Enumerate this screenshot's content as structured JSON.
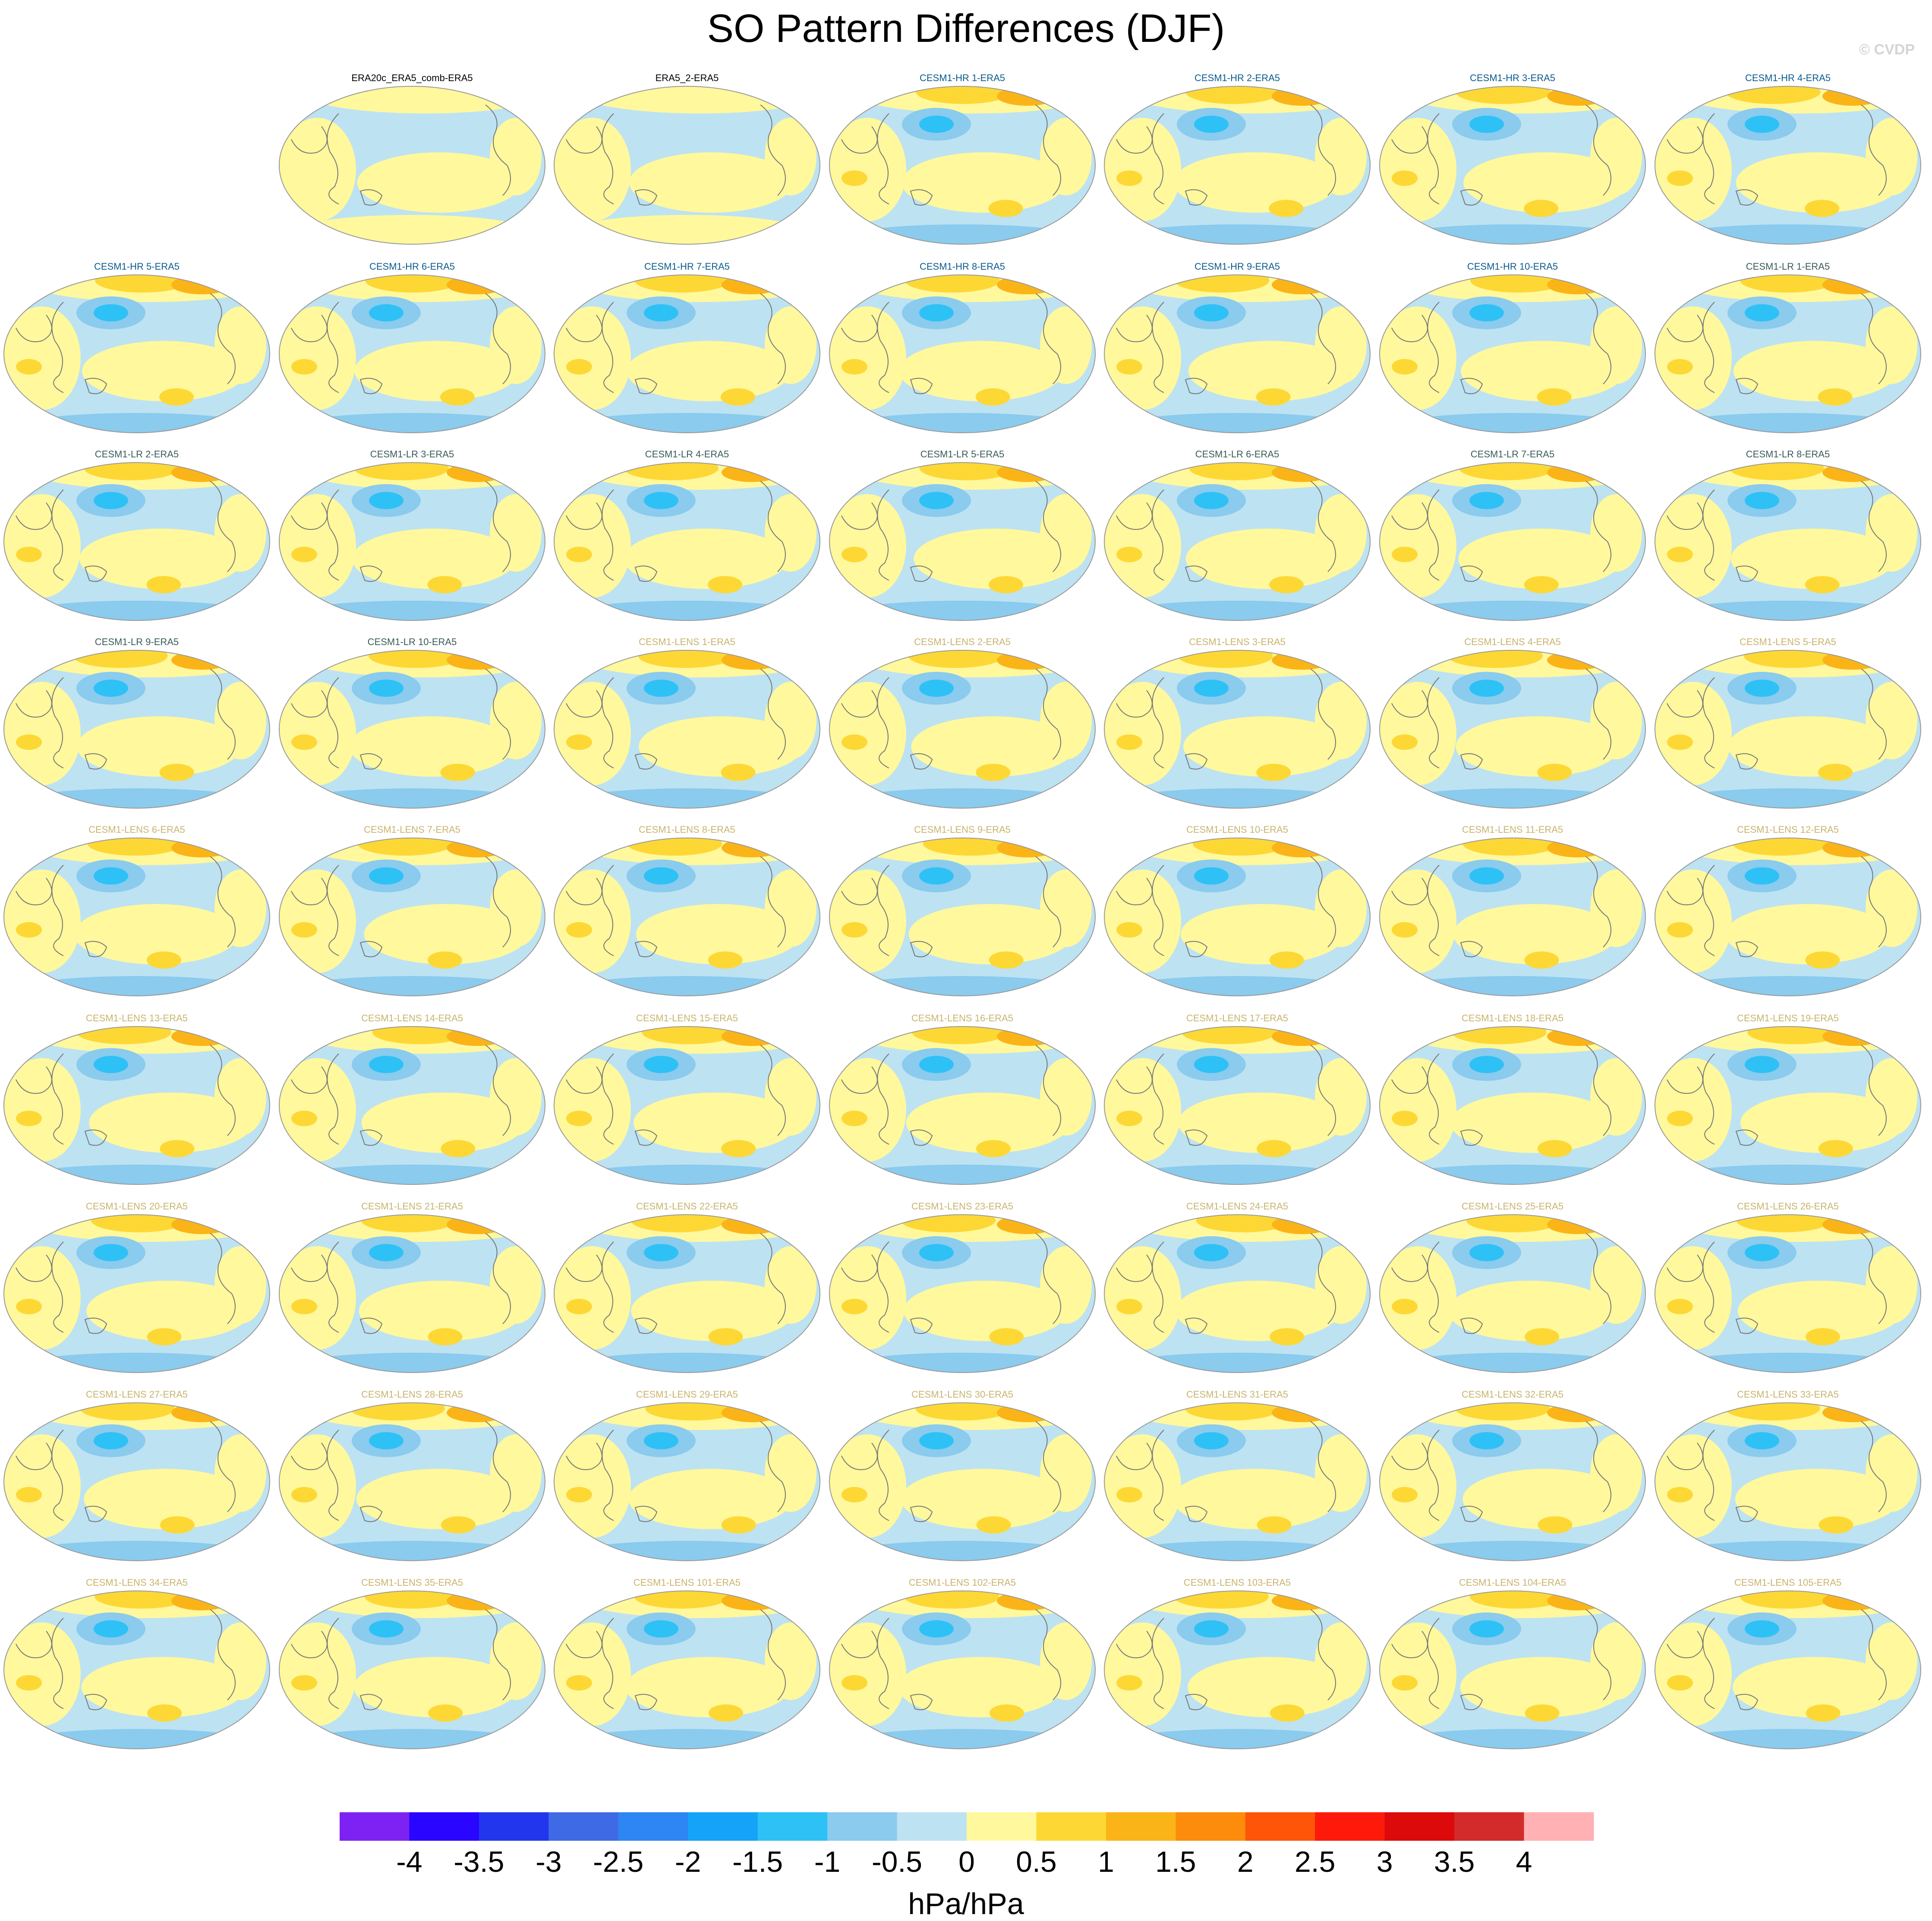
{
  "title": "SO Pattern Differences (DJF)",
  "credit": "© CVDP",
  "colorbar": {
    "units": "hPa/hPa",
    "labels": [
      "-4",
      "-3.5",
      "-3",
      "-2.5",
      "-2",
      "-1.5",
      "-1",
      "-0.5",
      "0",
      "0.5",
      "1",
      "1.5",
      "2",
      "2.5",
      "3",
      "3.5",
      "4"
    ],
    "colors": [
      "#7d22f2",
      "#2a05ff",
      "#2236ee",
      "#3f6ae6",
      "#2d86f3",
      "#14a3f7",
      "#2ec1f6",
      "#8acbee",
      "#bde2f2",
      "#fff89d",
      "#fdd835",
      "#fbb417",
      "#fd8c0c",
      "#fe5509",
      "#fd1a0b",
      "#dc0a0a",
      "#d32b2b",
      "#ffb1b3"
    ]
  },
  "panel_title_colors": {
    "obs": "#000000",
    "hr": "#0b5b8c",
    "lr": "#3a5a5a",
    "lens": "#c8b46e"
  },
  "chart_data": {
    "type": "map-grid",
    "variable": "SO Pattern Differences (DJF)",
    "units": "hPa/hPa",
    "contour_levels": [
      -4,
      -3.5,
      -3,
      -2.5,
      -2,
      -1.5,
      -1,
      -0.5,
      0,
      0.5,
      1,
      1.5,
      2,
      2.5,
      3,
      3.5,
      4
    ],
    "panels": [
      {
        "title": "ERA20c_ERA5_comb-ERA5",
        "group": "obs"
      },
      {
        "title": "ERA5_2-ERA5",
        "group": "obs"
      },
      {
        "title": "CESM1-HR 1-ERA5",
        "group": "hr"
      },
      {
        "title": "CESM1-HR 2-ERA5",
        "group": "hr"
      },
      {
        "title": "CESM1-HR 3-ERA5",
        "group": "hr"
      },
      {
        "title": "CESM1-HR 4-ERA5",
        "group": "hr"
      },
      {
        "title": "CESM1-HR 5-ERA5",
        "group": "hr"
      },
      {
        "title": "CESM1-HR 6-ERA5",
        "group": "hr"
      },
      {
        "title": "CESM1-HR 7-ERA5",
        "group": "hr"
      },
      {
        "title": "CESM1-HR 8-ERA5",
        "group": "hr"
      },
      {
        "title": "CESM1-HR 9-ERA5",
        "group": "hr"
      },
      {
        "title": "CESM1-HR 10-ERA5",
        "group": "hr"
      },
      {
        "title": "CESM1-LR 1-ERA5",
        "group": "lr"
      },
      {
        "title": "CESM1-LR 2-ERA5",
        "group": "lr"
      },
      {
        "title": "CESM1-LR 3-ERA5",
        "group": "lr"
      },
      {
        "title": "CESM1-LR 4-ERA5",
        "group": "lr"
      },
      {
        "title": "CESM1-LR 5-ERA5",
        "group": "lr"
      },
      {
        "title": "CESM1-LR 6-ERA5",
        "group": "lr"
      },
      {
        "title": "CESM1-LR 7-ERA5",
        "group": "lr"
      },
      {
        "title": "CESM1-LR 8-ERA5",
        "group": "lr"
      },
      {
        "title": "CESM1-LR 9-ERA5",
        "group": "lr"
      },
      {
        "title": "CESM1-LR 10-ERA5",
        "group": "lr"
      },
      {
        "title": "CESM1-LENS 1-ERA5",
        "group": "lens"
      },
      {
        "title": "CESM1-LENS 2-ERA5",
        "group": "lens"
      },
      {
        "title": "CESM1-LENS 3-ERA5",
        "group": "lens"
      },
      {
        "title": "CESM1-LENS 4-ERA5",
        "group": "lens"
      },
      {
        "title": "CESM1-LENS 5-ERA5",
        "group": "lens"
      },
      {
        "title": "CESM1-LENS 6-ERA5",
        "group": "lens"
      },
      {
        "title": "CESM1-LENS 7-ERA5",
        "group": "lens"
      },
      {
        "title": "CESM1-LENS 8-ERA5",
        "group": "lens"
      },
      {
        "title": "CESM1-LENS 9-ERA5",
        "group": "lens"
      },
      {
        "title": "CESM1-LENS 10-ERA5",
        "group": "lens"
      },
      {
        "title": "CESM1-LENS 11-ERA5",
        "group": "lens"
      },
      {
        "title": "CESM1-LENS 12-ERA5",
        "group": "lens"
      },
      {
        "title": "CESM1-LENS 13-ERA5",
        "group": "lens"
      },
      {
        "title": "CESM1-LENS 14-ERA5",
        "group": "lens"
      },
      {
        "title": "CESM1-LENS 15-ERA5",
        "group": "lens"
      },
      {
        "title": "CESM1-LENS 16-ERA5",
        "group": "lens"
      },
      {
        "title": "CESM1-LENS 17-ERA5",
        "group": "lens"
      },
      {
        "title": "CESM1-LENS 18-ERA5",
        "group": "lens"
      },
      {
        "title": "CESM1-LENS 19-ERA5",
        "group": "lens"
      },
      {
        "title": "CESM1-LENS 20-ERA5",
        "group": "lens"
      },
      {
        "title": "CESM1-LENS 21-ERA5",
        "group": "lens"
      },
      {
        "title": "CESM1-LENS 22-ERA5",
        "group": "lens"
      },
      {
        "title": "CESM1-LENS 23-ERA5",
        "group": "lens"
      },
      {
        "title": "CESM1-LENS 24-ERA5",
        "group": "lens"
      },
      {
        "title": "CESM1-LENS 25-ERA5",
        "group": "lens"
      },
      {
        "title": "CESM1-LENS 26-ERA5",
        "group": "lens"
      },
      {
        "title": "CESM1-LENS 27-ERA5",
        "group": "lens"
      },
      {
        "title": "CESM1-LENS 28-ERA5",
        "group": "lens"
      },
      {
        "title": "CESM1-LENS 29-ERA5",
        "group": "lens"
      },
      {
        "title": "CESM1-LENS 30-ERA5",
        "group": "lens"
      },
      {
        "title": "CESM1-LENS 31-ERA5",
        "group": "lens"
      },
      {
        "title": "CESM1-LENS 32-ERA5",
        "group": "lens"
      },
      {
        "title": "CESM1-LENS 33-ERA5",
        "group": "lens"
      },
      {
        "title": "CESM1-LENS 34-ERA5",
        "group": "lens"
      },
      {
        "title": "CESM1-LENS 35-ERA5",
        "group": "lens"
      },
      {
        "title": "CESM1-LENS 101-ERA5",
        "group": "lens"
      },
      {
        "title": "CESM1-LENS 102-ERA5",
        "group": "lens"
      },
      {
        "title": "CESM1-LENS 103-ERA5",
        "group": "lens"
      },
      {
        "title": "CESM1-LENS 104-ERA5",
        "group": "lens"
      },
      {
        "title": "CESM1-LENS 105-ERA5",
        "group": "lens"
      }
    ]
  }
}
